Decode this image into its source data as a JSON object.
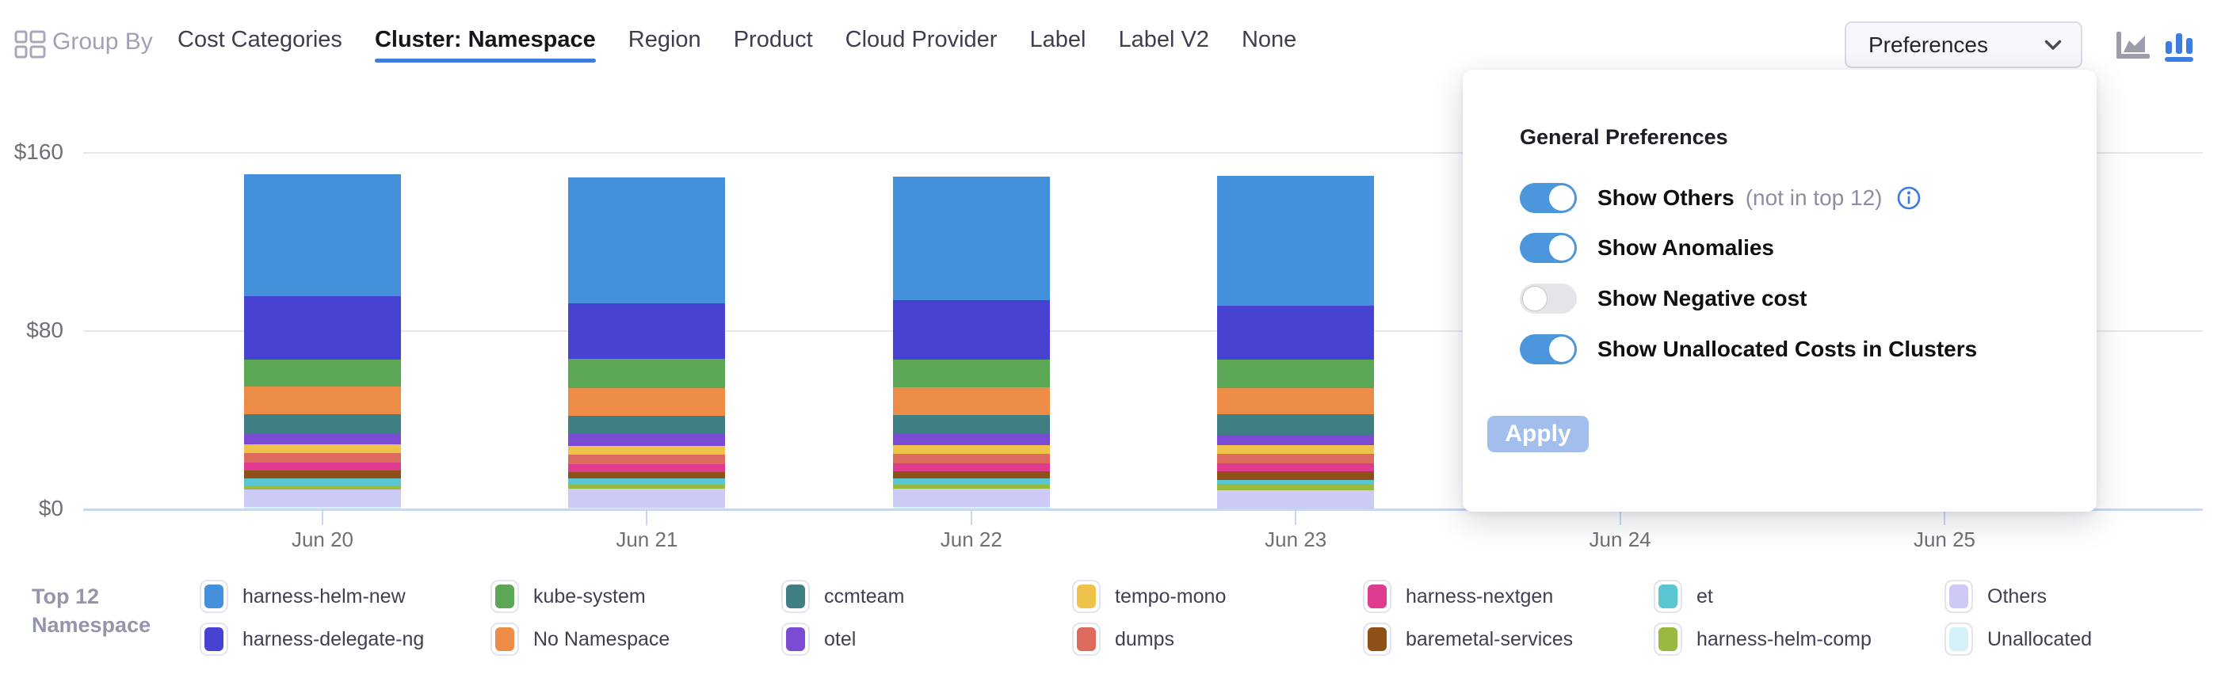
{
  "header": {
    "group_by_label": "Group By",
    "tabs": [
      {
        "label": "Cost Categories",
        "active": false
      },
      {
        "label": "Cluster: Namespace",
        "active": true
      },
      {
        "label": "Region",
        "active": false
      },
      {
        "label": "Product",
        "active": false
      },
      {
        "label": "Cloud Provider",
        "active": false
      },
      {
        "label": "Label",
        "active": false
      },
      {
        "label": "Label V2",
        "active": false
      },
      {
        "label": "None",
        "active": false
      }
    ],
    "preferences_button_label": "Preferences",
    "chart_type_icons": {
      "area": "area-chart-icon",
      "bar": "bar-chart-icon",
      "active": "bar"
    }
  },
  "preferences_panel": {
    "title": "General Preferences",
    "toggles": [
      {
        "label": "Show Others",
        "suffix": "(not in top 12)",
        "info": true,
        "on": true
      },
      {
        "label": "Show Anomalies",
        "suffix": "",
        "info": false,
        "on": true
      },
      {
        "label": "Show Negative cost",
        "suffix": "",
        "info": false,
        "on": false
      },
      {
        "label": "Show Unallocated Costs in Clusters",
        "suffix": "",
        "info": false,
        "on": true
      }
    ],
    "apply_label": "Apply",
    "accent_color": "#4C96DB"
  },
  "legend": {
    "title_line1": "Top 12",
    "title_line2": "Namespace"
  },
  "chart_data": {
    "type": "bar",
    "stacked": true,
    "title": "",
    "xlabel": "",
    "ylabel": "",
    "ylim": [
      0,
      160
    ],
    "grid": true,
    "legend_position": "bottom",
    "categories": [
      "Jun 20",
      "Jun 21",
      "Jun 22",
      "Jun 23",
      "Jun 24",
      "Jun 25"
    ],
    "y_ticks": [
      {
        "label": "$0",
        "value": 0
      },
      {
        "label": "$80",
        "value": 80
      },
      {
        "label": "$160",
        "value": 160
      }
    ],
    "note": "Bars for Jun 24 and Jun 25 are occluded by the open Preferences popup; series order = stack order top to bottom",
    "series": [
      {
        "name": "harness-helm-new",
        "color": "#4590DB",
        "values": [
          54.8,
          56.5,
          55.5,
          58.3,
          null,
          null
        ]
      },
      {
        "name": "harness-delegate-ng",
        "color": "#4842D3",
        "values": [
          28.4,
          24.9,
          26.5,
          24.2,
          null,
          null
        ]
      },
      {
        "name": "kube-system",
        "color": "#5BA755",
        "values": [
          12.1,
          13.2,
          12.6,
          12.8,
          null,
          null
        ]
      },
      {
        "name": "No Namespace",
        "color": "#ED8C46",
        "values": [
          12.4,
          12.4,
          12.2,
          11.7,
          null,
          null
        ]
      },
      {
        "name": "ccmteam",
        "color": "#3F7E82",
        "values": [
          8.9,
          8.2,
          8.6,
          9.2,
          null,
          null
        ]
      },
      {
        "name": "otel",
        "color": "#7C4BD3",
        "values": [
          4.6,
          5.3,
          4.9,
          4.6,
          null,
          null
        ]
      },
      {
        "name": "tempo-mono",
        "color": "#EFC24C",
        "values": [
          3.9,
          3.9,
          3.9,
          3.9,
          null,
          null
        ]
      },
      {
        "name": "dumps",
        "color": "#DC6A5D",
        "values": [
          4.3,
          4.3,
          4.3,
          4.3,
          null,
          null
        ]
      },
      {
        "name": "harness-nextgen",
        "color": "#DF3C90",
        "values": [
          3.6,
          3.6,
          3.6,
          3.6,
          null,
          null
        ]
      },
      {
        "name": "baremetal-services",
        "color": "#8F5017",
        "values": [
          3.6,
          2.8,
          3.2,
          3.9,
          null,
          null
        ]
      },
      {
        "name": "et",
        "color": "#5AC6D2",
        "values": [
          3.2,
          2.8,
          3.0,
          1.8,
          null,
          null
        ]
      },
      {
        "name": "harness-helm-comp",
        "color": "#99BA3F",
        "values": [
          1.8,
          1.8,
          1.8,
          2.8,
          null,
          null
        ]
      },
      {
        "name": "Others",
        "color": "#CDCBF6",
        "values": [
          7.8,
          8.5,
          8.2,
          8.2,
          null,
          null
        ]
      },
      {
        "name": "Unallocated",
        "color": "#D4F1FA",
        "values": [
          1.1,
          0.7,
          0.9,
          0.4,
          null,
          null
        ]
      }
    ]
  }
}
